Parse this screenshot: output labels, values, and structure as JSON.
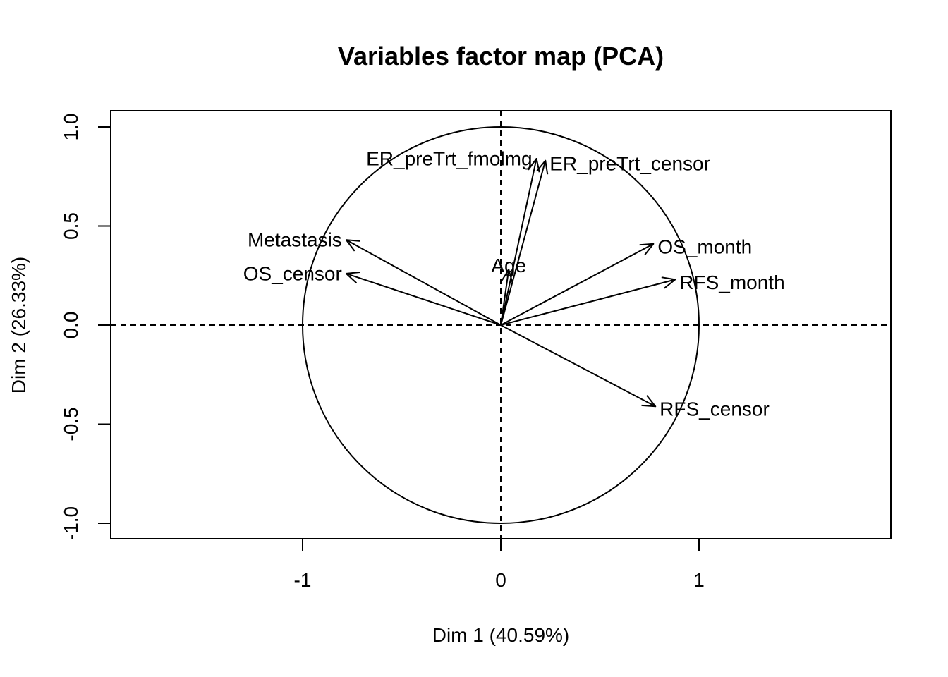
{
  "chart_data": {
    "type": "scatter",
    "subtype": "pca-variables-correlation-circle",
    "title": "Variables factor map (PCA)",
    "xlabel": "Dim 1 (40.59%)",
    "ylabel": "Dim 2 (26.33%)",
    "xlim": [
      -1.97,
      1.97
    ],
    "ylim": [
      -1.08,
      1.08
    ],
    "x_ticks": [
      -1,
      0,
      1
    ],
    "x_tick_labels": [
      "-1",
      "0",
      "1"
    ],
    "y_ticks": [
      -1.0,
      -0.5,
      0.0,
      0.5,
      1.0
    ],
    "y_tick_labels": [
      "-1.0",
      "-0.5",
      "0.0",
      "0.5",
      "1.0"
    ],
    "unit_circle": true,
    "reference_lines": "dashed x=0 and y=0",
    "grid": false,
    "legend": "none",
    "variables": [
      {
        "name": "ER_preTrt_fmolmg",
        "x": 0.18,
        "y": 0.84,
        "label_anchor": "end"
      },
      {
        "name": "ER_preTrt_censor",
        "x": 0.225,
        "y": 0.83,
        "label_anchor": "start"
      },
      {
        "name": "Metastasis",
        "x": -0.78,
        "y": 0.43,
        "label_anchor": "end"
      },
      {
        "name": "OS_censor",
        "x": -0.78,
        "y": 0.26,
        "label_anchor": "end"
      },
      {
        "name": "Age",
        "x": 0.04,
        "y": 0.28,
        "label_anchor": "middle"
      },
      {
        "name": "OS_month",
        "x": 0.77,
        "y": 0.41,
        "label_anchor": "start"
      },
      {
        "name": "RFS_month",
        "x": 0.88,
        "y": 0.23,
        "label_anchor": "start"
      },
      {
        "name": "RFS_censor",
        "x": 0.78,
        "y": -0.41,
        "label_anchor": "start"
      }
    ]
  }
}
